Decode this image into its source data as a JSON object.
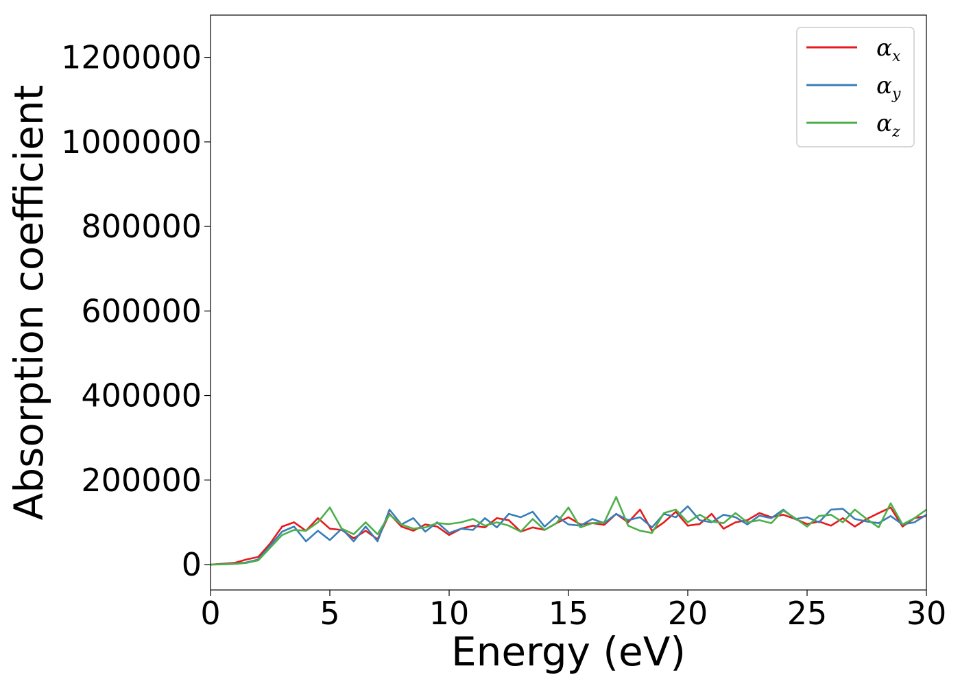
{
  "chart_data": {
    "type": "line",
    "title": "",
    "xlabel": "Energy (eV)",
    "ylabel": "Absorption coefficient",
    "xlim": [
      0,
      30
    ],
    "ylim": [
      -60000,
      1300000
    ],
    "xticks": [
      0,
      5,
      10,
      15,
      20,
      25,
      30
    ],
    "yticks": [
      0,
      200000,
      400000,
      600000,
      800000,
      1000000,
      1200000
    ],
    "xtick_labels": [
      "0",
      "5",
      "10",
      "15",
      "20",
      "25",
      "30"
    ],
    "ytick_labels": [
      "0",
      "200000",
      "400000",
      "600000",
      "800000",
      "1000000",
      "1200000"
    ],
    "grid": false,
    "legend_position": "top-right",
    "x": [
      0,
      0.5,
      1,
      1.5,
      2,
      2.5,
      3,
      3.5,
      4,
      4.5,
      5,
      5.5,
      6,
      6.5,
      7,
      7.5,
      8,
      8.5,
      9,
      9.5,
      10,
      10.5,
      11,
      11.5,
      12,
      12.5,
      13,
      13.5,
      14,
      14.5,
      15,
      15.5,
      16,
      16.5,
      17,
      17.5,
      18,
      18.5,
      19,
      19.5,
      20,
      20.5,
      21,
      21.5,
      22,
      22.5,
      23,
      23.5,
      24,
      24.5,
      25,
      25.5,
      26,
      26.5,
      27,
      27.5,
      28,
      28.5,
      29,
      29.5,
      30
    ],
    "series": [
      {
        "name": "α",
        "subscript": "x",
        "color": "#e41a1c",
        "values": [
          0,
          2000,
          4000,
          12000,
          18000,
          50000,
          90000,
          100000,
          80000,
          110000,
          85000,
          82000,
          62000,
          80000,
          60000,
          120000,
          90000,
          80000,
          95000,
          90000,
          70000,
          85000,
          92000,
          88000,
          110000,
          105000,
          78000,
          88000,
          82000,
          98000,
          112000,
          95000,
          98000,
          94000,
          120000,
          100000,
          130000,
          80000,
          100000,
          125000,
          92000,
          96000,
          120000,
          85000,
          100000,
          105000,
          122000,
          112000,
          118000,
          108000,
          96000,
          102000,
          92000,
          110000,
          90000,
          108000,
          122000,
          135000,
          90000,
          110000,
          115000
        ]
      },
      {
        "name": "α",
        "subscript": "y",
        "color": "#377eb8",
        "values": [
          0,
          1000,
          2000,
          5000,
          12000,
          45000,
          78000,
          90000,
          55000,
          80000,
          58000,
          85000,
          55000,
          90000,
          55000,
          130000,
          95000,
          110000,
          78000,
          100000,
          75000,
          85000,
          82000,
          110000,
          88000,
          120000,
          112000,
          125000,
          90000,
          115000,
          95000,
          92000,
          108000,
          98000,
          120000,
          105000,
          112000,
          88000,
          120000,
          112000,
          138000,
          105000,
          100000,
          118000,
          112000,
          95000,
          116000,
          110000,
          130000,
          108000,
          112000,
          100000,
          130000,
          132000,
          108000,
          102000,
          98000,
          115000,
          95000,
          100000,
          118000
        ]
      },
      {
        "name": "α",
        "subscript": "z",
        "color": "#4daf4a",
        "values": [
          0,
          500,
          1500,
          4000,
          10000,
          40000,
          70000,
          82000,
          80000,
          100000,
          135000,
          85000,
          72000,
          100000,
          72000,
          118000,
          95000,
          85000,
          88000,
          98000,
          96000,
          100000,
          108000,
          92000,
          100000,
          92000,
          78000,
          108000,
          82000,
          98000,
          135000,
          88000,
          98000,
          100000,
          160000,
          92000,
          80000,
          75000,
          122000,
          130000,
          100000,
          118000,
          102000,
          98000,
          122000,
          100000,
          105000,
          98000,
          128000,
          110000,
          90000,
          115000,
          118000,
          100000,
          130000,
          108000,
          88000,
          145000,
          95000,
          110000,
          130000
        ]
      }
    ]
  }
}
